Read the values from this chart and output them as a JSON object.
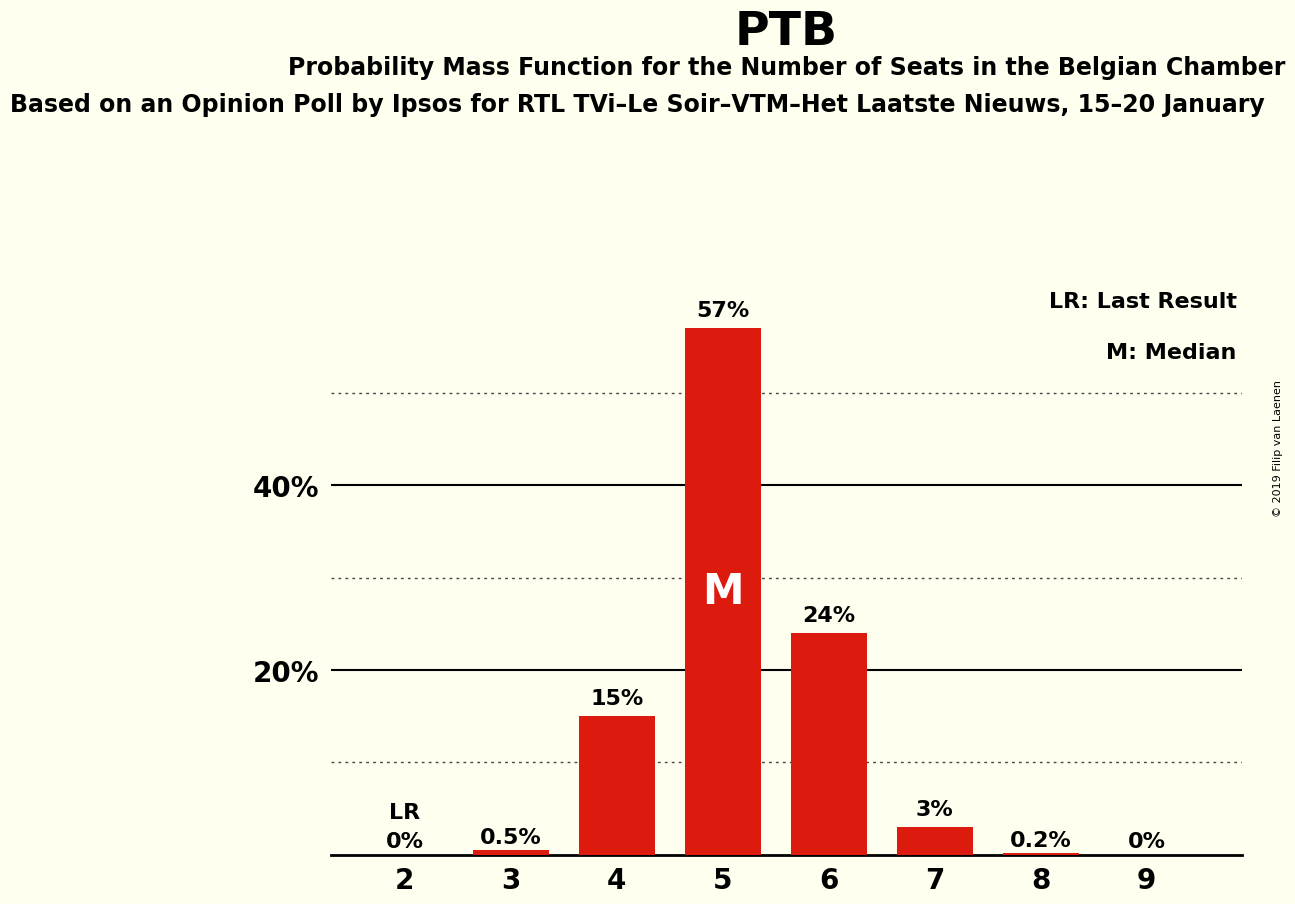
{
  "title": "PTB",
  "subtitle1": "Probability Mass Function for the Number of Seats in the Belgian Chamber",
  "subtitle2": "Based on an Opinion Poll by Ipsos for RTL TVi–Le Soir–VTM–Het Laatste Nieuws, 15–20 January",
  "copyright": "© 2019 Filip van Laenen",
  "categories": [
    2,
    3,
    4,
    5,
    6,
    7,
    8,
    9
  ],
  "values": [
    0.0,
    0.5,
    15.0,
    57.0,
    24.0,
    3.0,
    0.2,
    0.0
  ],
  "bar_color": "#dc1a0e",
  "background_color": "#fffff0",
  "label_texts": [
    "0%",
    "0.5%",
    "15%",
    "57%",
    "24%",
    "3%",
    "0.2%",
    "0%"
  ],
  "median_seat": 5,
  "median_label": "M",
  "lr_seat": 2,
  "lr_label": "LR",
  "legend_text1": "LR: Last Result",
  "legend_text2": "M: Median",
  "solid_yticks": [
    20,
    40
  ],
  "dotted_yticks": [
    10,
    30,
    50
  ],
  "ytick_labels": {
    "20": "20%",
    "40": "40%"
  },
  "ymax": 62,
  "xlim_left": 1.3,
  "xlim_right": 9.9
}
